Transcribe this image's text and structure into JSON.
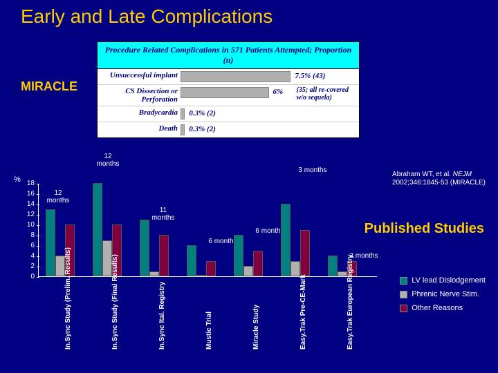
{
  "title": "Early and Late Complications",
  "trial_label": "MIRACLE",
  "published_label": "Published Studies",
  "citation_line1": "Abraham WT, et al. ",
  "citation_ital": "NEJM",
  "citation_line2": "2002;346:1845-53 (MIRACLE)",
  "table": {
    "header": "Procedure Related Complications in 571 Patients Attempted; Proportion (n)",
    "rows": [
      {
        "label": "Unsuccessful implant",
        "pct": 7.5,
        "text": "7.5% (43)",
        "note": ""
      },
      {
        "label": "CS Dissection or Perforation",
        "pct": 6.0,
        "text": "6%",
        "note": "(35; all re-covered w/o sequela)"
      },
      {
        "label": "Bradycardia",
        "pct": 0.3,
        "text": "0.3% (2)",
        "note": ""
      },
      {
        "label": "Death",
        "pct": 0.3,
        "text": "0.3% (2)",
        "note": ""
      }
    ]
  },
  "bar_chart": {
    "y_label": "%",
    "y_max": 18,
    "y_ticks": [
      0,
      2,
      4,
      6,
      8,
      10,
      12,
      14,
      16,
      18
    ],
    "colors": {
      "c1": "#008080",
      "c2": "#b0b0b0",
      "c3": "#800040"
    },
    "groups": [
      {
        "x": 10,
        "period": "12 months",
        "py": -30,
        "px": -4,
        "bars": [
          13,
          4,
          10
        ]
      },
      {
        "x": 78,
        "period": "12 months",
        "py": -45,
        "px": 0,
        "bars": [
          18,
          7,
          10
        ]
      },
      {
        "x": 146,
        "period": "11 months",
        "py": -20,
        "px": 12,
        "bars": [
          11,
          1,
          8
        ]
      },
      {
        "x": 214,
        "period": "6 months",
        "py": -12,
        "px": 30,
        "bars": [
          6,
          0,
          3
        ]
      },
      {
        "x": 282,
        "period": "6 months",
        "py": -12,
        "px": 30,
        "bars": [
          8,
          2,
          5
        ]
      },
      {
        "x": 350,
        "period": "3 months",
        "py": -55,
        "px": 24,
        "bars": [
          14,
          3,
          9
        ]
      },
      {
        "x": 418,
        "period": "3 months",
        "py": -6,
        "px": 30,
        "bars": [
          4,
          1,
          3
        ]
      }
    ],
    "x_labels": [
      "In.Sync Study (Prelim. Results)",
      "In.Sync Study (Final Results)",
      "In.Sync Ital. Registry",
      "Mustic Trial",
      "Miracle Study",
      "Easy.Trak Pre-CE-Mark",
      "Easy.Trak European Registry"
    ]
  },
  "legend": {
    "items": [
      {
        "color": "#008080",
        "label": "LV lead Dislodgement"
      },
      {
        "color": "#b0b0b0",
        "label": "Phrenic Nerve Stim."
      },
      {
        "color": "#800040",
        "label": "Other Reasons"
      }
    ]
  }
}
